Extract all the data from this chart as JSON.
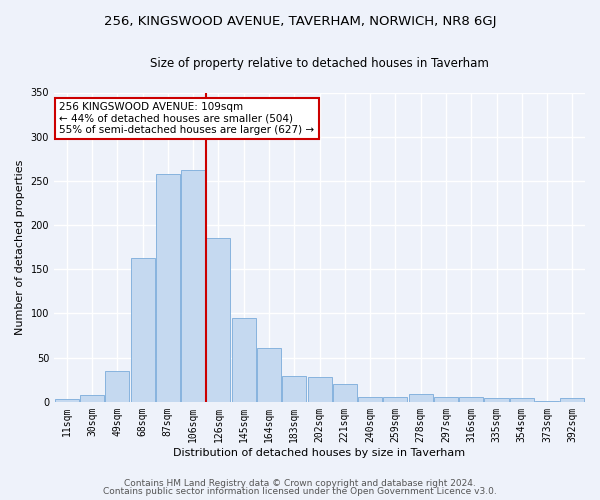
{
  "title": "256, KINGSWOOD AVENUE, TAVERHAM, NORWICH, NR8 6GJ",
  "subtitle": "Size of property relative to detached houses in Taverham",
  "xlabel": "Distribution of detached houses by size in Taverham",
  "ylabel": "Number of detached properties",
  "bar_color": "#c5d9f0",
  "bar_edge_color": "#7aabda",
  "categories": [
    "11sqm",
    "30sqm",
    "49sqm",
    "68sqm",
    "87sqm",
    "106sqm",
    "126sqm",
    "145sqm",
    "164sqm",
    "183sqm",
    "202sqm",
    "221sqm",
    "240sqm",
    "259sqm",
    "278sqm",
    "297sqm",
    "316sqm",
    "335sqm",
    "354sqm",
    "373sqm",
    "392sqm"
  ],
  "values": [
    3,
    8,
    35,
    163,
    258,
    262,
    185,
    95,
    61,
    29,
    28,
    20,
    6,
    6,
    9,
    6,
    5,
    4,
    4,
    1,
    4
  ],
  "property_line_x": 5.5,
  "annotation_text": "256 KINGSWOOD AVENUE: 109sqm\n← 44% of detached houses are smaller (504)\n55% of semi-detached houses are larger (627) →",
  "annotation_box_color": "#ffffff",
  "annotation_box_edge": "#cc0000",
  "vline_color": "#cc0000",
  "ylim": [
    0,
    350
  ],
  "yticks": [
    0,
    50,
    100,
    150,
    200,
    250,
    300,
    350
  ],
  "background_color": "#eef2fa",
  "grid_color": "#ffffff",
  "footer_line1": "Contains HM Land Registry data © Crown copyright and database right 2024.",
  "footer_line2": "Contains public sector information licensed under the Open Government Licence v3.0.",
  "title_fontsize": 9.5,
  "subtitle_fontsize": 8.5,
  "xlabel_fontsize": 8,
  "ylabel_fontsize": 8,
  "tick_fontsize": 7,
  "annotation_fontsize": 7.5,
  "footer_fontsize": 6.5
}
